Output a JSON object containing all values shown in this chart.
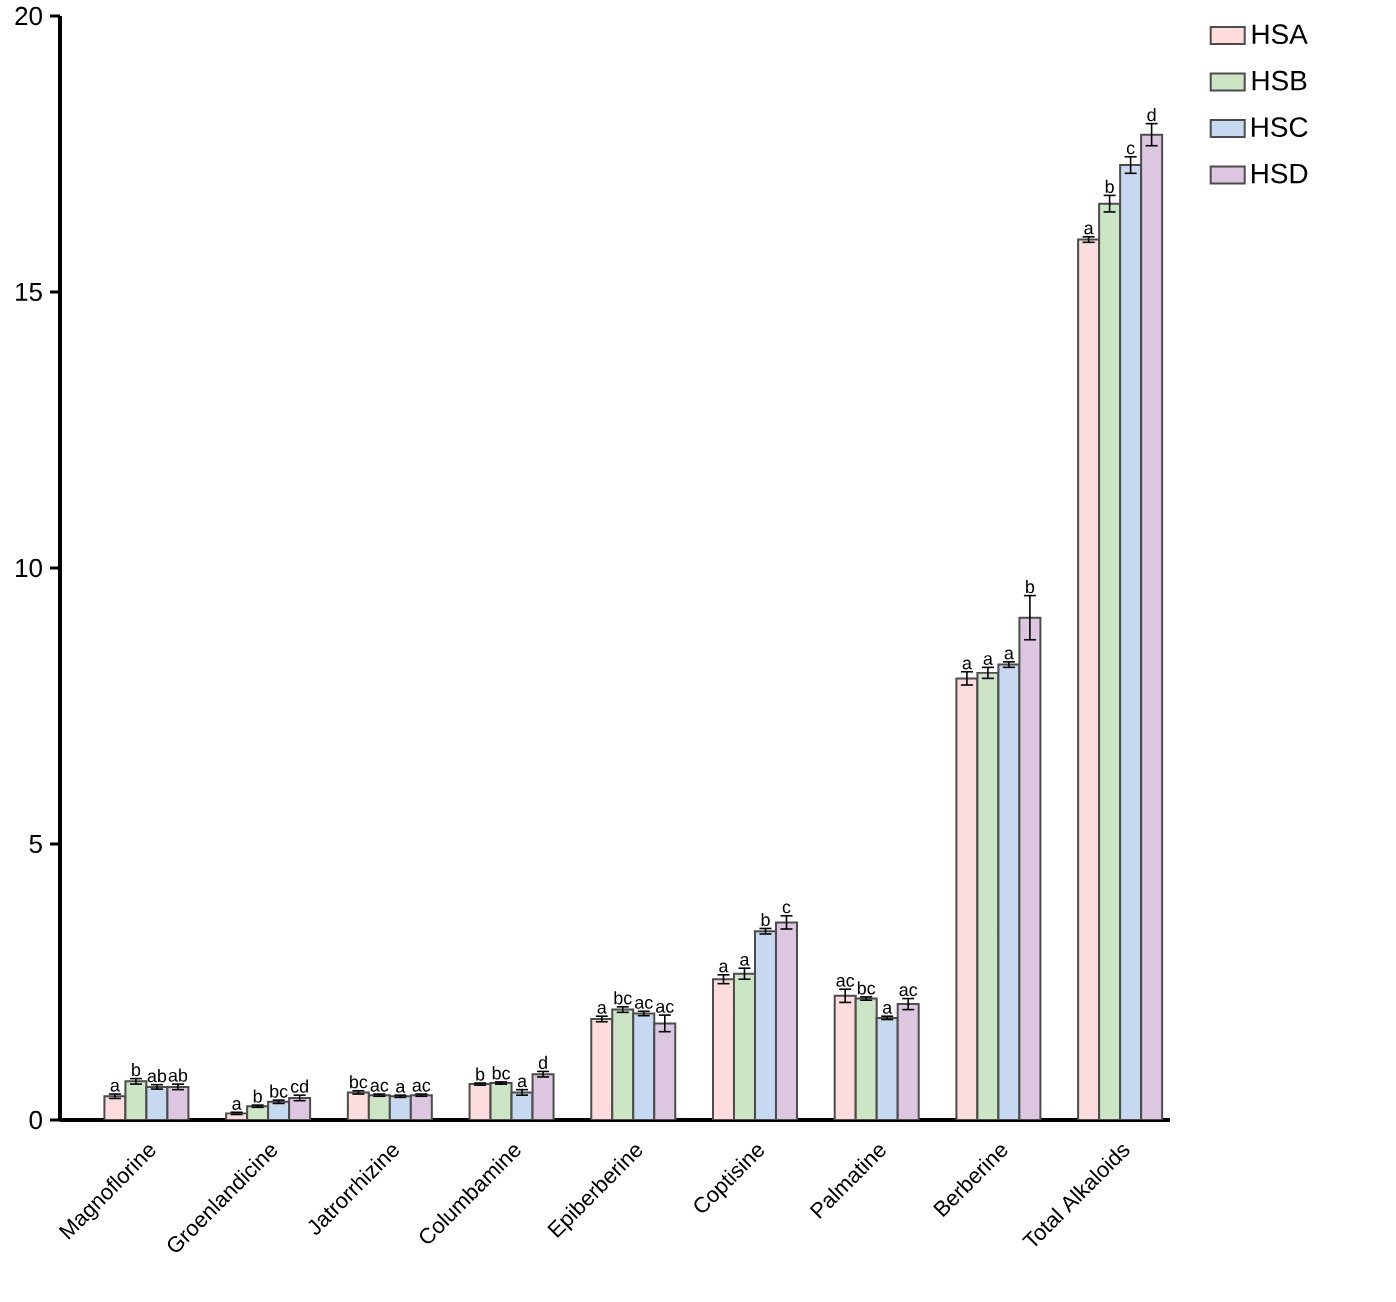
{
  "chart_data": {
    "type": "bar",
    "categories": [
      "Magnoflorine",
      "Groenlandicine",
      "Jatrorrhizine",
      "Columbamine",
      "Epiberberine",
      "Coptisine",
      "Palmatine",
      "Berberine",
      "Total Alkaloids"
    ],
    "ylim": [
      0,
      20
    ],
    "yticks": [
      0,
      5,
      10,
      15,
      20
    ],
    "legend": "top right",
    "grid": false,
    "series": [
      {
        "name": "HSA",
        "color": "#fcdcdc",
        "values": [
          0.43,
          0.12,
          0.5,
          0.65,
          1.83,
          2.55,
          2.25,
          8.0,
          15.95
        ],
        "errors": [
          0.04,
          0.02,
          0.03,
          0.02,
          0.05,
          0.08,
          0.12,
          0.12,
          0.05
        ],
        "value_labels": [
          "a",
          "a",
          "bc",
          "b",
          "a",
          "a",
          "ac",
          "a",
          "a"
        ]
      },
      {
        "name": "HSB",
        "color": "#cce5c4",
        "values": [
          0.7,
          0.25,
          0.45,
          0.67,
          2.0,
          2.65,
          2.2,
          8.1,
          16.6
        ],
        "errors": [
          0.05,
          0.02,
          0.02,
          0.02,
          0.05,
          0.1,
          0.03,
          0.1,
          0.15
        ],
        "value_labels": [
          "b",
          "b",
          "ac",
          "bc",
          "bc",
          "a",
          "bc",
          "a",
          "b"
        ]
      },
      {
        "name": "HSC",
        "color": "#c6d9f0",
        "values": [
          0.6,
          0.33,
          0.43,
          0.5,
          1.93,
          3.42,
          1.85,
          8.25,
          17.3
        ],
        "errors": [
          0.04,
          0.03,
          0.02,
          0.05,
          0.04,
          0.05,
          0.03,
          0.05,
          0.15
        ],
        "value_labels": [
          "ab",
          "bc",
          "a",
          "a",
          "ac",
          "b",
          "a",
          "a",
          "c"
        ]
      },
      {
        "name": "HSD",
        "color": "#dcc6e0",
        "values": [
          0.6,
          0.4,
          0.45,
          0.83,
          1.75,
          3.58,
          2.1,
          9.1,
          17.85
        ],
        "errors": [
          0.05,
          0.05,
          0.02,
          0.05,
          0.15,
          0.12,
          0.1,
          0.4,
          0.2
        ],
        "value_labels": [
          "ab",
          "cd",
          "ac",
          "d",
          "ac",
          "c",
          "ac",
          "b",
          "d"
        ]
      }
    ]
  }
}
